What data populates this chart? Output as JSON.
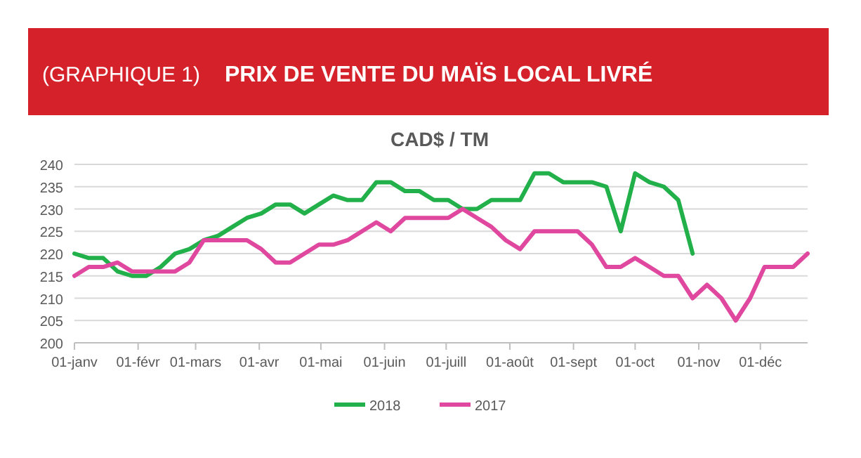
{
  "chart_data": {
    "type": "line",
    "title": "PRIX DE VENTE DU MAÏS LOCAL LIVRÉ",
    "subtitle": "CAD$ / TM",
    "annotations": [
      "(GRAPHIQUE 1)"
    ],
    "x": [
      "--01-01",
      "--01-08",
      "--01-15",
      "--01-22",
      "--01-29",
      "--02-05",
      "--02-12",
      "--02-19",
      "--02-26",
      "--03-05",
      "--03-12",
      "--03-19",
      "--03-26",
      "--04-02",
      "--04-09",
      "--04-16",
      "--04-23",
      "--04-30",
      "--05-07",
      "--05-14",
      "--05-21",
      "--05-28",
      "--06-04",
      "--06-11",
      "--06-18",
      "--06-25",
      "--07-02",
      "--07-09",
      "--07-16",
      "--07-23",
      "--07-30",
      "--08-06",
      "--08-13",
      "--08-20",
      "--08-27",
      "--09-03",
      "--09-10",
      "--09-17",
      "--09-24",
      "--10-01",
      "--10-08",
      "--10-15",
      "--10-22",
      "--10-29",
      "--11-05",
      "--11-12",
      "--11-19",
      "--11-26",
      "--12-03",
      "--12-10",
      "--12-17",
      "--12-24"
    ],
    "series": [
      {
        "name": "2018",
        "color": "#22b04a",
        "values": [
          220,
          219,
          219,
          216,
          215,
          215,
          217,
          220,
          221,
          223,
          224,
          226,
          228,
          229,
          231,
          231,
          229,
          231,
          233,
          232,
          232,
          236,
          236,
          234,
          234,
          232,
          232,
          230,
          230,
          232,
          232,
          232,
          238,
          238,
          236,
          236,
          236,
          235,
          225,
          238,
          236,
          235,
          232,
          220,
          null,
          null,
          null,
          null,
          null,
          null,
          null,
          null
        ]
      },
      {
        "name": "2017",
        "color": "#e0479e",
        "values": [
          215,
          217,
          217,
          218,
          216,
          216,
          216,
          216,
          218,
          223,
          223,
          223,
          223,
          221,
          218,
          218,
          220,
          222,
          222,
          223,
          225,
          227,
          225,
          228,
          228,
          228,
          228,
          230,
          228,
          226,
          223,
          221,
          225,
          225,
          225,
          225,
          222,
          217,
          217,
          219,
          217,
          215,
          215,
          210,
          213,
          210,
          205,
          210,
          217,
          217,
          217,
          220
        ]
      }
    ],
    "xlim": [
      "--01-01",
      "--12-24"
    ],
    "xticks": [
      {
        "value": "--01-01",
        "label": "01-janv"
      },
      {
        "value": "--02-01",
        "label": "01-févr"
      },
      {
        "value": "--03-01",
        "label": "01-mars"
      },
      {
        "value": "--04-01",
        "label": "01-avr"
      },
      {
        "value": "--05-01",
        "label": "01-mai"
      },
      {
        "value": "--06-01",
        "label": "01-juin"
      },
      {
        "value": "--07-01",
        "label": "01-juill"
      },
      {
        "value": "--08-01",
        "label": "01-août"
      },
      {
        "value": "--09-01",
        "label": "01-sept"
      },
      {
        "value": "--10-01",
        "label": "01-oct"
      },
      {
        "value": "--11-01",
        "label": "01-nov"
      },
      {
        "value": "--12-01",
        "label": "01-déc"
      }
    ],
    "ylim": [
      200,
      240
    ],
    "yticks": [
      200,
      205,
      210,
      215,
      220,
      225,
      230,
      235,
      240
    ],
    "grid": "y",
    "legend": "bottom",
    "marker": "none",
    "line_style": "solid"
  }
}
